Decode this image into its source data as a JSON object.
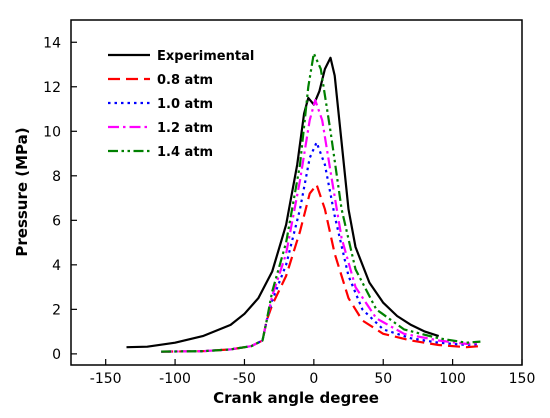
{
  "chart_data": {
    "type": "line",
    "xlabel": "Crank angle degree",
    "ylabel": "Pressure (MPa)",
    "xlim": [
      -175,
      150
    ],
    "ylim": [
      -0.5,
      15
    ],
    "xticks": [
      -150,
      -100,
      -50,
      0,
      50,
      100,
      150
    ],
    "yticks": [
      0,
      2,
      4,
      6,
      8,
      10,
      12,
      14
    ],
    "grid": false,
    "legend_position": "top-left",
    "series": [
      {
        "name": "Experimental",
        "color": "#000000",
        "dash": "solid",
        "points": [
          [
            -135,
            0.3
          ],
          [
            -120,
            0.32
          ],
          [
            -100,
            0.5
          ],
          [
            -80,
            0.8
          ],
          [
            -60,
            1.3
          ],
          [
            -50,
            1.8
          ],
          [
            -40,
            2.5
          ],
          [
            -30,
            3.7
          ],
          [
            -20,
            5.8
          ],
          [
            -12,
            8.5
          ],
          [
            -7,
            10.8
          ],
          [
            -4,
            11.5
          ],
          [
            0,
            11.2
          ],
          [
            4,
            11.8
          ],
          [
            8,
            12.8
          ],
          [
            12,
            13.3
          ],
          [
            15,
            12.5
          ],
          [
            20,
            9.5
          ],
          [
            25,
            6.5
          ],
          [
            30,
            4.8
          ],
          [
            40,
            3.2
          ],
          [
            50,
            2.3
          ],
          [
            60,
            1.7
          ],
          [
            70,
            1.3
          ],
          [
            80,
            1.0
          ],
          [
            90,
            0.8
          ]
        ]
      },
      {
        "name": "0.8 atm",
        "color": "#ff0000",
        "dash": "long-dash",
        "points": [
          [
            -110,
            0.1
          ],
          [
            -80,
            0.12
          ],
          [
            -60,
            0.2
          ],
          [
            -45,
            0.35
          ],
          [
            -37,
            0.6
          ],
          [
            -34,
            1.5
          ],
          [
            -30,
            2.2
          ],
          [
            -20,
            3.5
          ],
          [
            -10,
            5.5
          ],
          [
            -3,
            7.2
          ],
          [
            2,
            7.6
          ],
          [
            8,
            6.5
          ],
          [
            15,
            4.5
          ],
          [
            25,
            2.5
          ],
          [
            35,
            1.5
          ],
          [
            50,
            0.9
          ],
          [
            70,
            0.6
          ],
          [
            90,
            0.4
          ],
          [
            110,
            0.3
          ],
          [
            120,
            0.35
          ]
        ]
      },
      {
        "name": "1.0 atm",
        "color": "#0000ff",
        "dash": "dotted",
        "points": [
          [
            -110,
            0.1
          ],
          [
            -80,
            0.12
          ],
          [
            -60,
            0.2
          ],
          [
            -45,
            0.35
          ],
          [
            -37,
            0.6
          ],
          [
            -34,
            1.5
          ],
          [
            -30,
            2.4
          ],
          [
            -20,
            4.0
          ],
          [
            -10,
            6.5
          ],
          [
            -3,
            8.8
          ],
          [
            2,
            9.5
          ],
          [
            8,
            8.5
          ],
          [
            15,
            6.2
          ],
          [
            25,
            3.5
          ],
          [
            35,
            2.0
          ],
          [
            50,
            1.1
          ],
          [
            70,
            0.7
          ],
          [
            90,
            0.5
          ],
          [
            110,
            0.4
          ],
          [
            120,
            0.45
          ]
        ]
      },
      {
        "name": "1.2 atm",
        "color": "#ff00ff",
        "dash": "dash-dot",
        "points": [
          [
            -110,
            0.1
          ],
          [
            -80,
            0.12
          ],
          [
            -60,
            0.2
          ],
          [
            -45,
            0.35
          ],
          [
            -37,
            0.6
          ],
          [
            -34,
            1.5
          ],
          [
            -30,
            2.6
          ],
          [
            -20,
            4.5
          ],
          [
            -10,
            7.8
          ],
          [
            -3,
            10.5
          ],
          [
            1,
            11.4
          ],
          [
            6,
            10.5
          ],
          [
            12,
            8.2
          ],
          [
            20,
            5.2
          ],
          [
            30,
            3.0
          ],
          [
            45,
            1.6
          ],
          [
            65,
            0.9
          ],
          [
            90,
            0.6
          ],
          [
            110,
            0.45
          ],
          [
            120,
            0.5
          ]
        ]
      },
      {
        "name": "1.4 atm",
        "color": "#008000",
        "dash": "dash-dot-dot",
        "points": [
          [
            -110,
            0.1
          ],
          [
            -80,
            0.12
          ],
          [
            -60,
            0.2
          ],
          [
            -45,
            0.35
          ],
          [
            -37,
            0.6
          ],
          [
            -34,
            1.5
          ],
          [
            -30,
            2.8
          ],
          [
            -20,
            5.0
          ],
          [
            -10,
            8.5
          ],
          [
            -4,
            12.0
          ],
          [
            0,
            13.5
          ],
          [
            5,
            12.8
          ],
          [
            12,
            10.0
          ],
          [
            20,
            6.5
          ],
          [
            30,
            3.8
          ],
          [
            45,
            2.0
          ],
          [
            65,
            1.1
          ],
          [
            90,
            0.7
          ],
          [
            110,
            0.5
          ],
          [
            120,
            0.55
          ]
        ]
      }
    ]
  }
}
